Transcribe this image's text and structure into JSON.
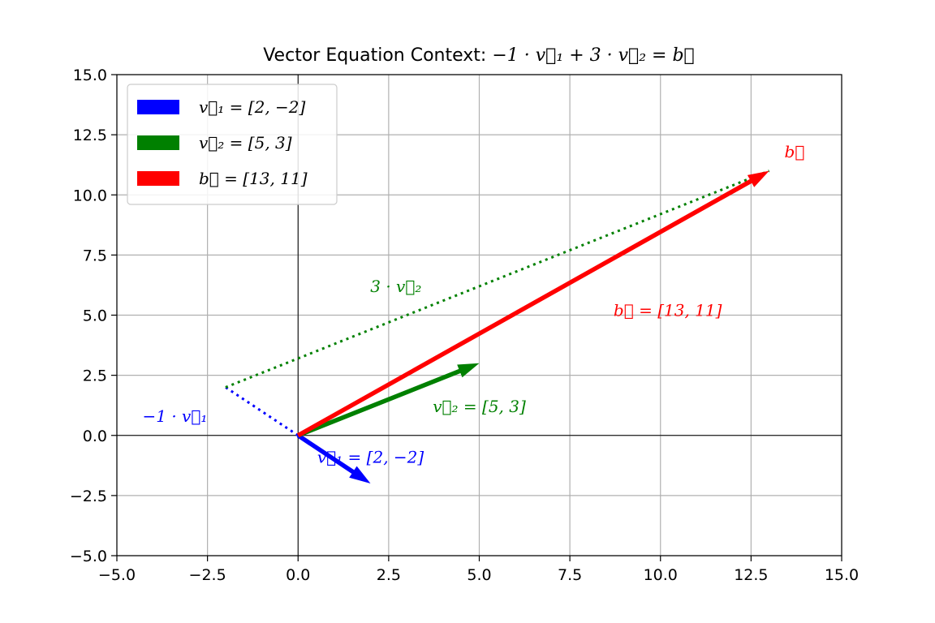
{
  "chart_data": {
    "type": "vector",
    "title": {
      "prefix": "Vector Equation Context: ",
      "equation": "−1 · v⃗₁ + 3 · v⃗₂ = b⃗"
    },
    "xlim": [
      -5,
      15
    ],
    "ylim": [
      -5,
      15
    ],
    "xticks": [
      -5,
      -2.5,
      0,
      2.5,
      5,
      7.5,
      10,
      12.5,
      15
    ],
    "yticks": [
      -5,
      -2.5,
      0,
      2.5,
      5,
      7.5,
      10,
      12.5,
      15
    ],
    "xtick_labels": [
      "−5.0",
      "−2.5",
      "0.0",
      "2.5",
      "5.0",
      "7.5",
      "10.0",
      "12.5",
      "15.0"
    ],
    "ytick_labels": [
      "−5.0",
      "−2.5",
      "0.0",
      "2.5",
      "5.0",
      "7.5",
      "10.0",
      "12.5",
      "15.0"
    ],
    "grid": true,
    "legend_position": "top-left",
    "vectors": [
      {
        "key": "v1",
        "from": [
          0,
          0
        ],
        "to": [
          2,
          -2
        ],
        "color": "#0000ff",
        "legend": "v⃗₁ = [2, −2]",
        "label": "v⃗₁ = [2, −2]",
        "label_at": [
          2.0,
          -0.9
        ]
      },
      {
        "key": "v2",
        "from": [
          0,
          0
        ],
        "to": [
          5,
          3
        ],
        "color": "#008000",
        "legend": "v⃗₂ = [5, 3]",
        "label": "v⃗₂ = [5, 3]",
        "label_at": [
          5.0,
          1.2
        ]
      },
      {
        "key": "b",
        "from": [
          0,
          0
        ],
        "to": [
          13,
          11
        ],
        "color": "#ff0000",
        "legend": "b⃗ = [13, 11]",
        "label": "b⃗ = [13, 11]",
        "label_at": [
          10.2,
          5.2
        ]
      }
    ],
    "dotted_segments": [
      {
        "from": [
          0,
          0
        ],
        "to": [
          -2,
          2
        ],
        "color": "#0000ff",
        "label": "−1 · v⃗₁",
        "label_at": [
          -3.4,
          0.8
        ]
      },
      {
        "from": [
          -2,
          2
        ],
        "to": [
          13,
          11
        ],
        "color": "#008000",
        "label": "3 · v⃗₂",
        "label_at": [
          2.7,
          6.2
        ]
      }
    ],
    "annotations": [
      {
        "text": "b⃗",
        "at": [
          13.7,
          11.8
        ],
        "color": "#ff0000"
      }
    ]
  }
}
